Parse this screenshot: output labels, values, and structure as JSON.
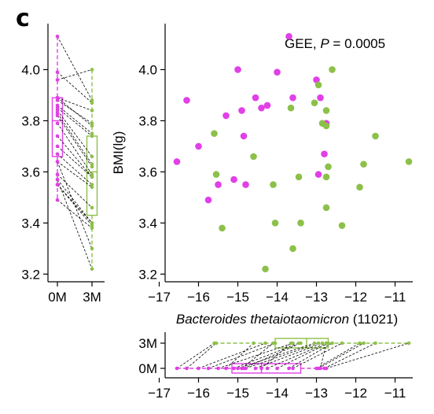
{
  "figure": {
    "panel_letter": "c",
    "annotation_prefix": "GEE, ",
    "annotation_p": "P",
    "annotation_suffix": " = 0.0005",
    "scatter_ylabel": "BMI(lg)",
    "xlabel_species": "Bacteroides thetaiotaomicron",
    "xlabel_id": " (11021)"
  },
  "colors": {
    "0M": "#e040e6",
    "3M": "#8dc04a"
  },
  "chart_data": [
    {
      "type": "scatter",
      "ylabel": "BMI(lg)",
      "xlabel": "Bacteroides thetaiotaomicron (11021)",
      "xlim": [
        -16.85,
        -10.55
      ],
      "ylim": [
        3.17,
        4.18
      ],
      "x_ticks": [
        -17,
        -16,
        -15,
        -14,
        -13,
        -12,
        -11
      ],
      "y_ticks": [
        3.2,
        3.4,
        3.6,
        3.8,
        4.0
      ],
      "annotation": "GEE, P = 0.0005",
      "series": [
        {
          "key": "0M",
          "points": [
            {
              "x": -16.55,
              "y": 3.64
            },
            {
              "x": -16.3,
              "y": 3.88
            },
            {
              "x": -16.0,
              "y": 3.7
            },
            {
              "x": -15.75,
              "y": 3.49
            },
            {
              "x": -15.3,
              "y": 3.82
            },
            {
              "x": -15.1,
              "y": 3.57
            },
            {
              "x": -15.0,
              "y": 4.0
            },
            {
              "x": -14.9,
              "y": 3.84
            },
            {
              "x": -14.85,
              "y": 3.74
            },
            {
              "x": -14.8,
              "y": 3.55
            },
            {
              "x": -14.55,
              "y": 3.89
            },
            {
              "x": -14.4,
              "y": 3.85
            },
            {
              "x": -14.25,
              "y": 3.86
            },
            {
              "x": -14.0,
              "y": 3.99
            },
            {
              "x": -13.7,
              "y": 4.13
            },
            {
              "x": -13.6,
              "y": 3.89
            },
            {
              "x": -13.0,
              "y": 3.96
            },
            {
              "x": -12.95,
              "y": 3.59
            },
            {
              "x": -12.9,
              "y": 3.89
            },
            {
              "x": -12.8,
              "y": 3.67
            },
            {
              "x": -12.75,
              "y": 3.79
            },
            {
              "x": -15.5,
              "y": 3.55
            }
          ]
        },
        {
          "key": "3M",
          "points": [
            {
              "x": -15.6,
              "y": 3.75
            },
            {
              "x": -15.55,
              "y": 3.59
            },
            {
              "x": -15.4,
              "y": 3.38
            },
            {
              "x": -14.6,
              "y": 3.66
            },
            {
              "x": -14.1,
              "y": 3.55
            },
            {
              "x": -14.05,
              "y": 3.4
            },
            {
              "x": -14.3,
              "y": 3.22
            },
            {
              "x": -13.65,
              "y": 3.85
            },
            {
              "x": -13.6,
              "y": 3.3
            },
            {
              "x": -13.45,
              "y": 3.58
            },
            {
              "x": -13.4,
              "y": 3.4
            },
            {
              "x": -13.05,
              "y": 3.87
            },
            {
              "x": -12.95,
              "y": 3.94
            },
            {
              "x": -12.85,
              "y": 3.79
            },
            {
              "x": -12.75,
              "y": 3.84
            },
            {
              "x": -12.75,
              "y": 3.78
            },
            {
              "x": -12.7,
              "y": 3.62
            },
            {
              "x": -12.75,
              "y": 3.58
            },
            {
              "x": -12.75,
              "y": 3.46
            },
            {
              "x": -12.6,
              "y": 4.0
            },
            {
              "x": -12.35,
              "y": 3.39
            },
            {
              "x": -11.9,
              "y": 3.54
            },
            {
              "x": -11.8,
              "y": 3.63
            },
            {
              "x": -11.5,
              "y": 3.74
            },
            {
              "x": -10.65,
              "y": 3.64
            }
          ]
        }
      ]
    },
    {
      "type": "box",
      "orientation": "vertical",
      "categories": [
        "0M",
        "3M"
      ],
      "ylim": [
        3.17,
        4.18
      ],
      "y_ticks": [
        3.2,
        3.4,
        3.6,
        3.8,
        4.0
      ],
      "boxes": [
        {
          "name": "0M",
          "min": 3.49,
          "q1": 3.66,
          "median": 3.8,
          "q3": 3.89,
          "max": 4.13
        },
        {
          "name": "3M",
          "min": 3.22,
          "q1": 3.43,
          "median": 3.6,
          "q3": 3.74,
          "max": 4.0
        }
      ],
      "paired_points": [
        [
          4.13,
          3.88
        ],
        [
          3.99,
          3.87
        ],
        [
          3.96,
          4.0
        ],
        [
          3.89,
          3.84
        ],
        [
          3.89,
          3.78
        ],
        [
          3.88,
          3.79
        ],
        [
          3.86,
          3.75
        ],
        [
          3.85,
          3.74
        ],
        [
          3.84,
          3.66
        ],
        [
          3.83,
          3.63
        ],
        [
          3.82,
          3.62
        ],
        [
          3.79,
          3.59
        ],
        [
          3.74,
          3.58
        ],
        [
          3.7,
          3.58
        ],
        [
          3.67,
          3.55
        ],
        [
          3.64,
          3.54
        ],
        [
          3.59,
          3.46
        ],
        [
          3.57,
          3.4
        ],
        [
          3.55,
          3.4
        ],
        [
          3.55,
          3.39
        ],
        [
          3.49,
          3.38
        ],
        [
          3.64,
          3.3
        ],
        [
          3.57,
          3.22
        ]
      ]
    },
    {
      "type": "box",
      "orientation": "horizontal",
      "categories": [
        "0M",
        "3M"
      ],
      "xlim": [
        -16.85,
        -10.55
      ],
      "x_ticks": [
        -17,
        -16,
        -15,
        -14,
        -13,
        -12,
        -11
      ],
      "boxes": [
        {
          "name": "0M",
          "min": -16.55,
          "q1": -15.15,
          "median": -14.4,
          "q3": -13.4,
          "max": -12.75
        },
        {
          "name": "3M",
          "min": -15.6,
          "q1": -14.05,
          "median": -13.25,
          "q3": -12.7,
          "max": -10.65
        }
      ],
      "paired_points": [
        [
          -16.55,
          -15.6
        ],
        [
          -16.3,
          -15.55
        ],
        [
          -16.0,
          -14.3
        ],
        [
          -15.75,
          -14.05
        ],
        [
          -15.5,
          -13.6
        ],
        [
          -15.3,
          -14.6
        ],
        [
          -15.1,
          -13.45
        ],
        [
          -15.0,
          -13.05
        ],
        [
          -14.9,
          -14.1
        ],
        [
          -14.85,
          -13.4
        ],
        [
          -14.8,
          -12.95
        ],
        [
          -14.55,
          -12.85
        ],
        [
          -14.4,
          -13.65
        ],
        [
          -14.25,
          -12.75
        ],
        [
          -14.0,
          -12.7
        ],
        [
          -13.7,
          -12.6
        ],
        [
          -13.6,
          -12.35
        ],
        [
          -13.0,
          -11.9
        ],
        [
          -12.95,
          -11.8
        ],
        [
          -12.9,
          -12.75
        ],
        [
          -12.8,
          -11.5
        ],
        [
          -12.75,
          -10.65
        ]
      ]
    }
  ]
}
